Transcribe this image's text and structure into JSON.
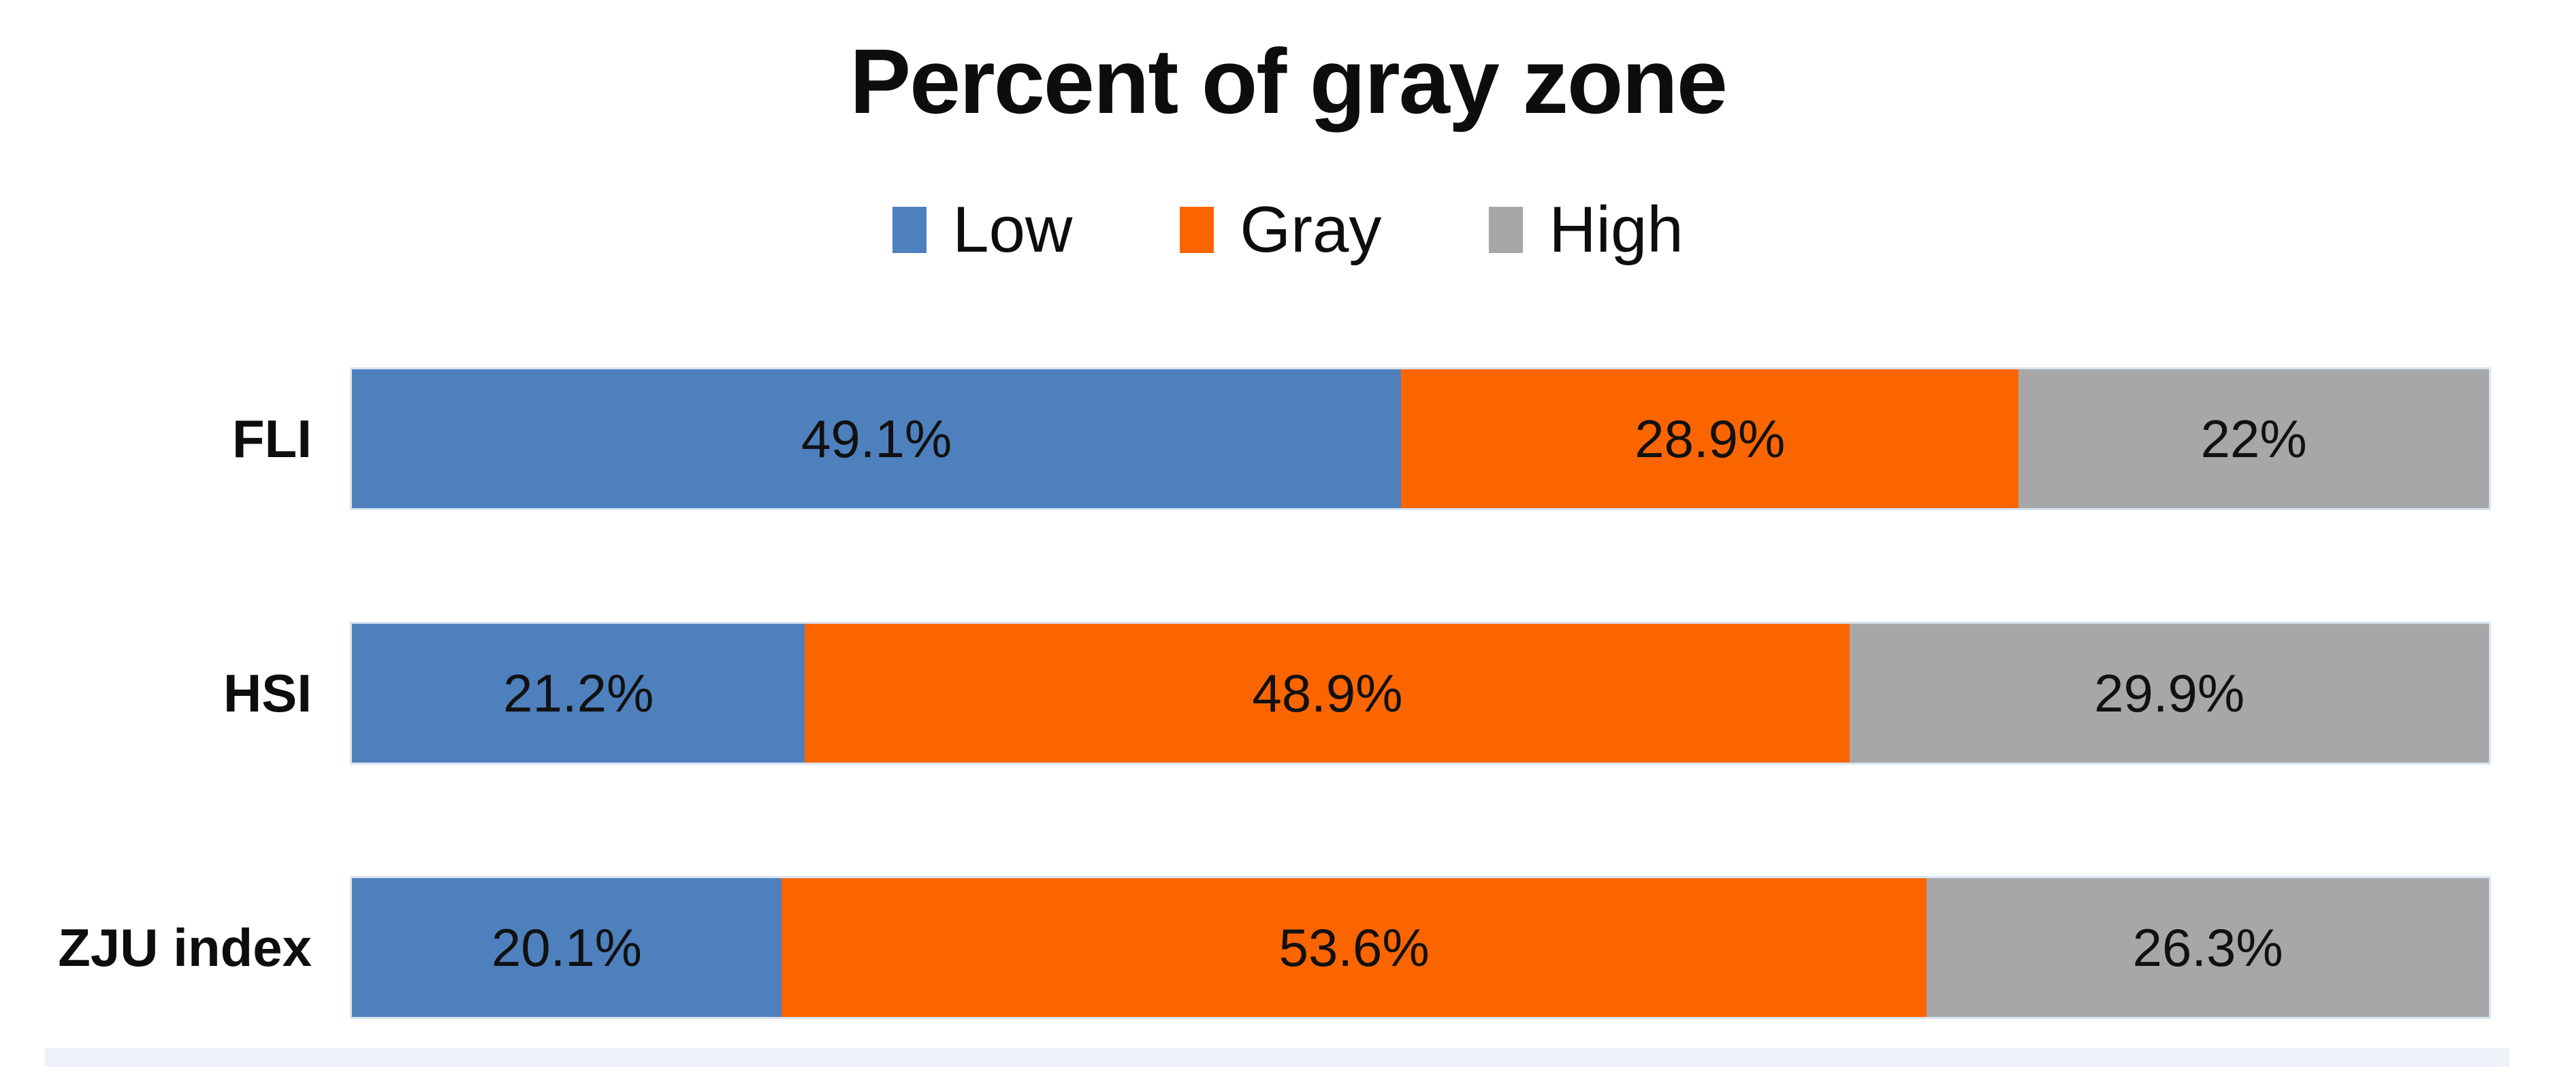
{
  "title": "Percent of gray zone",
  "colors": {
    "low": "#4E80BD",
    "gray_zone": "#FB6500",
    "high": "#A7A7A7",
    "bar_border": "#D9E3F1",
    "bottom_strip": "#EDF1F8",
    "text": "#0D0D0D"
  },
  "legend": [
    {
      "label": "Low",
      "color": "#4E80BD"
    },
    {
      "label": "Gray",
      "color": "#FB6500"
    },
    {
      "label": "High",
      "color": "#A7A7A7"
    }
  ],
  "chart_data": {
    "type": "bar",
    "orientation": "horizontal",
    "stacked": true,
    "title": "Percent of gray zone",
    "xlabel": "",
    "ylabel": "",
    "xlim": [
      0,
      100
    ],
    "grid": false,
    "legend_position": "top-center",
    "categories": [
      "FLI",
      "HSI",
      "ZJU index"
    ],
    "series": [
      {
        "name": "Low",
        "color": "#4E80BD",
        "values": [
          49.1,
          21.2,
          20.1
        ]
      },
      {
        "name": "Gray",
        "color": "#FB6500",
        "values": [
          28.9,
          48.9,
          53.6
        ]
      },
      {
        "name": "High",
        "color": "#A7A7A7",
        "values": [
          22.0,
          29.9,
          26.3
        ]
      }
    ],
    "segment_labels": [
      [
        "49.1%",
        "28.9%",
        "22%"
      ],
      [
        "21.2%",
        "48.9%",
        "29.9%"
      ],
      [
        "20.1%",
        "53.6%",
        "26.3%"
      ]
    ]
  }
}
